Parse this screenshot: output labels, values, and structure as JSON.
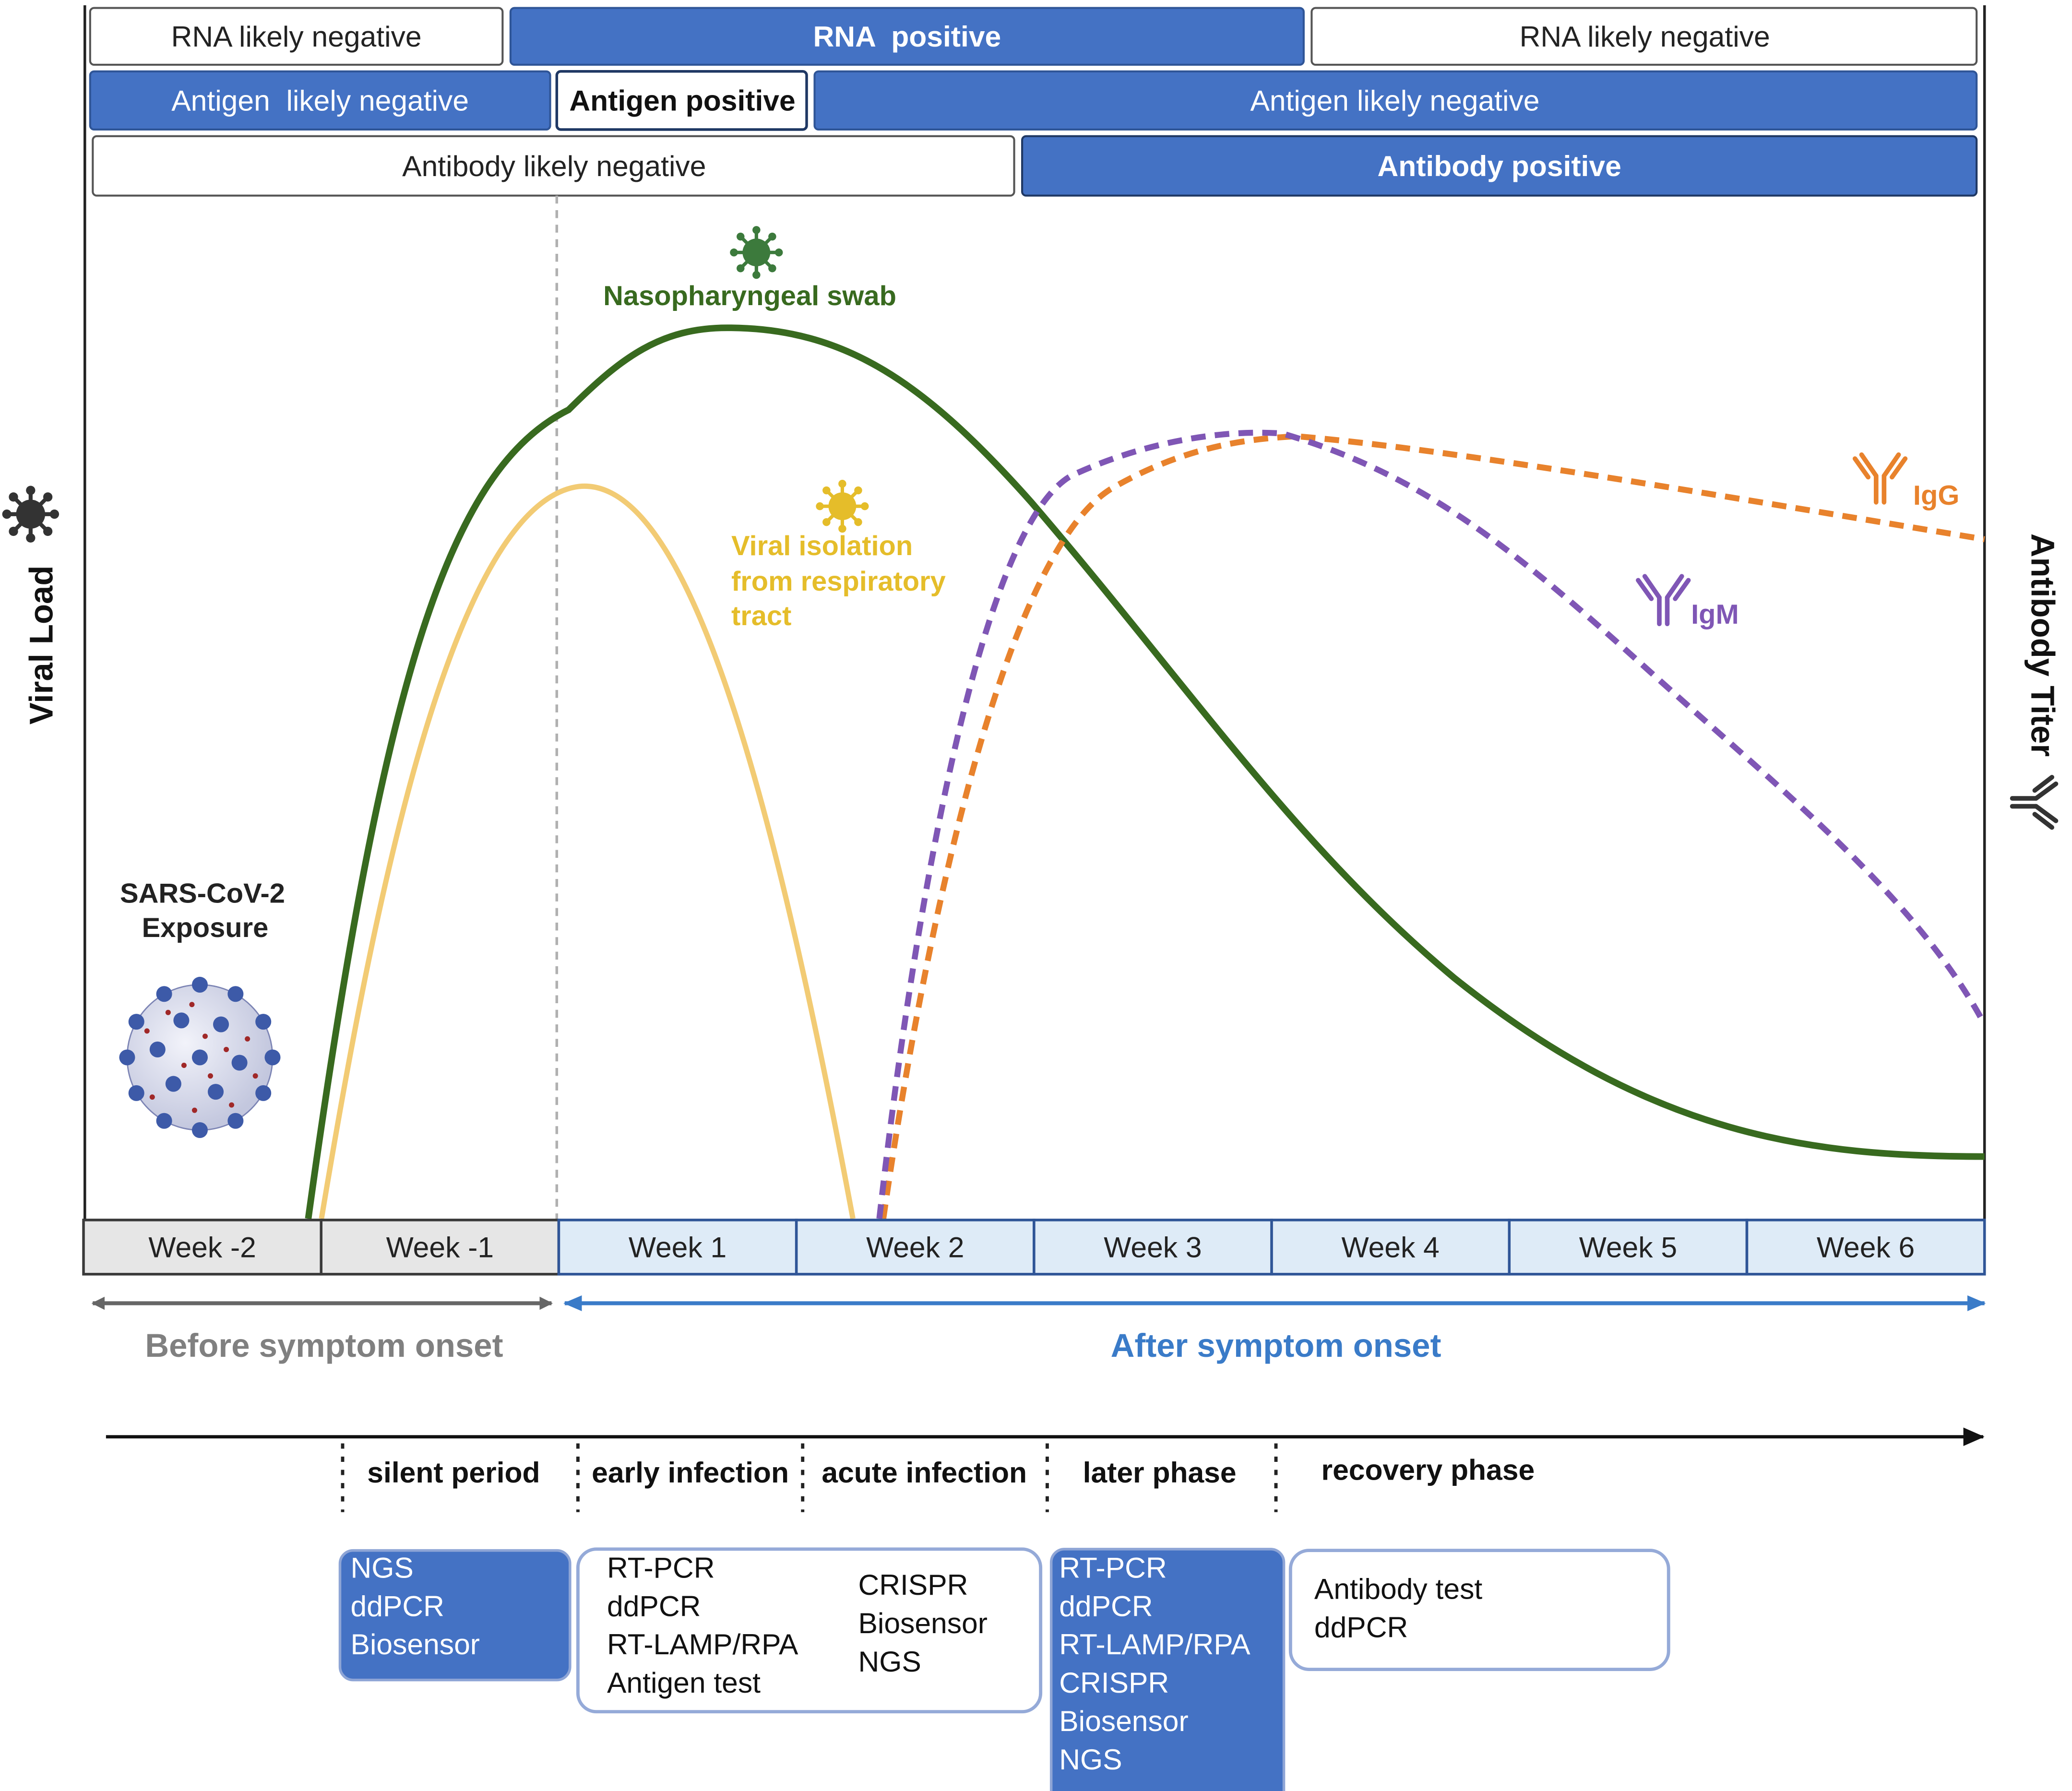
{
  "status_bars": {
    "rna": [
      "RNA likely negative",
      "RNA  positive",
      "RNA likely negative"
    ],
    "antigen": [
      "Antigen  likely negative",
      "Antigen positive",
      "Antigen likely negative"
    ],
    "antibody": [
      "Antibody likely negative",
      "Antibody positive"
    ]
  },
  "axes": {
    "left_label": "Viral Load",
    "right_label": "Antibody Titer"
  },
  "curves": {
    "nasopharyngeal_label": "Nasopharyngeal swab",
    "viral_isolation_label": [
      "Viral isolation",
      "from respiratory",
      "tract"
    ],
    "igg_label": "IgG",
    "igm_label": "IgM"
  },
  "exposure_label": [
    "SARS-CoV-2",
    "Exposure"
  ],
  "weeks": [
    "Week -2",
    "Week -1",
    "Week 1",
    "Week 2",
    "Week 3",
    "Week 4",
    "Week 5",
    "Week 6"
  ],
  "onset": {
    "before": "Before symptom onset",
    "after": "After symptom onset"
  },
  "phases": [
    "silent period",
    "early infection",
    "acute infection",
    "later phase",
    "recovery phase"
  ],
  "methods": {
    "silent": [
      "NGS",
      "ddPCR",
      "Biosensor"
    ],
    "early_col1": [
      "RT-PCR",
      "ddPCR",
      "RT-LAMP/RPA",
      "Antigen test"
    ],
    "early_col2": [
      "CRISPR",
      "Biosensor",
      "NGS"
    ],
    "later": [
      "RT-PCR",
      "ddPCR",
      "RT-LAMP/RPA",
      "CRISPR",
      "Biosensor",
      "NGS"
    ],
    "recovery": [
      "Antibody test",
      "ddPCR"
    ]
  },
  "colors": {
    "blue_fill": "#4472c4",
    "nasopharyngeal": "#386a1f",
    "viral_isolation": "#f2cb74",
    "viral_isolation_text": "#e5bd2a",
    "igm": "#7f56b5",
    "igg": "#e8822c",
    "after_onset": "#3a7bc8",
    "before_onset": "#808080"
  },
  "icons": [
    "virus-icon",
    "antibody-icon",
    "sars-cov-2-particle-icon"
  ]
}
